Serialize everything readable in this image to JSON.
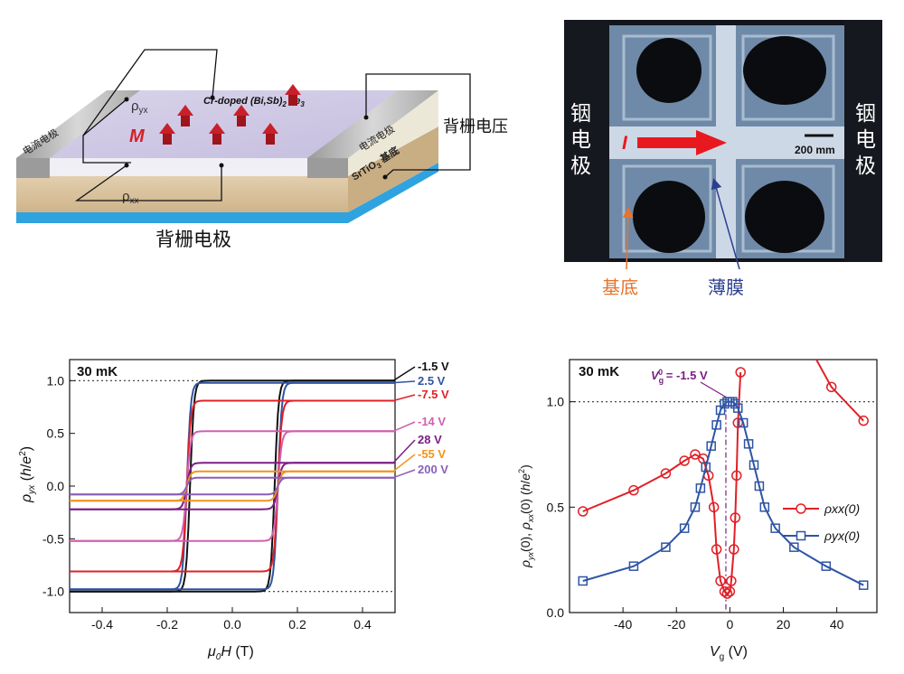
{
  "device": {
    "top_label": "Cr-doped (Bi,Sb)",
    "top_label_sub": "2",
    "top_label_tail": " Te",
    "top_label_sub2": "3",
    "rho_yx": "ρ",
    "rho_yx_sub": "yx",
    "rho_xx": "ρ",
    "rho_xx_sub": "xx",
    "magnetization": "M",
    "current_electrode_left": "电流电极",
    "current_electrode_right": "电流电极",
    "substrate": "SrTiO",
    "substrate_sub": "3",
    "substrate_tail": " 基底",
    "back_gate_voltage": "背栅电压",
    "back_gate_electrode": "背栅电极"
  },
  "micrograph": {
    "left_electrode": [
      "铟",
      "电",
      "极"
    ],
    "right_electrode": [
      "铟",
      "电",
      "极"
    ],
    "current_label": "I",
    "scale_bar": "200 mm",
    "substrate_label": "基底",
    "film_label": "薄膜",
    "colors": {
      "substrate": "#e8732b",
      "film": "#2b3f8f",
      "current": "#e8191e"
    }
  },
  "chart_data": [
    {
      "type": "line",
      "title": "30 mK",
      "xlabel": "μ0H (T)",
      "ylabel": "ρyx (h/e²)",
      "xlim": [
        -0.5,
        0.5
      ],
      "ylim": [
        -1.2,
        1.2
      ],
      "xticks": [
        "-0.4",
        "-0.2",
        "0.0",
        "0.2",
        "0.4"
      ],
      "yticks": [
        "-1.0",
        "-0.5",
        "0.0",
        "0.5",
        "1.0"
      ],
      "reference_lines": [
        1.0,
        -1.0
      ],
      "legend_placement": "right-outside",
      "series": [
        {
          "name": "-1.5 V",
          "color": "#111111",
          "saturation": 1.0,
          "coercive_field": 0.13
        },
        {
          "name": "2.5 V",
          "color": "#2e54a4",
          "saturation": 0.98,
          "coercive_field": 0.14
        },
        {
          "name": "-7.5 V",
          "color": "#e02027",
          "saturation": 0.81,
          "coercive_field": 0.14
        },
        {
          "name": "-14 V",
          "color": "#d060b0",
          "saturation": 0.52,
          "coercive_field": 0.14
        },
        {
          "name": "28 V",
          "color": "#7b1f84",
          "saturation": 0.22,
          "coercive_field": 0.14
        },
        {
          "name": "-55 V",
          "color": "#f2941c",
          "saturation": 0.14,
          "coercive_field": 0.14
        },
        {
          "name": "200 V",
          "color": "#8b5fb8",
          "saturation": 0.08,
          "coercive_field": 0.14
        }
      ]
    },
    {
      "type": "scatter",
      "title": "30 mK",
      "annotation": "V",
      "annotation_sub": "g",
      "annotation_sup": "0",
      "annotation_value": " = -1.5 V",
      "xlabel": "Vg (V)",
      "ylabel": "ρyx(0), ρxx(0) (h/e²)",
      "xlim": [
        -60,
        55
      ],
      "ylim": [
        0,
        1.2
      ],
      "xticks": [
        "-40",
        "-20",
        "0",
        "20",
        "40"
      ],
      "yticks": [
        "0.0",
        "0.5",
        "1.0"
      ],
      "reference_lines": [
        1.0
      ],
      "legend_placement": "right",
      "series": [
        {
          "name": "ρxx(0)",
          "marker": "circle",
          "color": "#e02027",
          "points": [
            [
              -55,
              0.48
            ],
            [
              -36,
              0.58
            ],
            [
              -24,
              0.66
            ],
            [
              -17,
              0.72
            ],
            [
              -13,
              0.75
            ],
            [
              -10,
              0.73
            ],
            [
              -8,
              0.65
            ],
            [
              -6,
              0.5
            ],
            [
              -5,
              0.3
            ],
            [
              -3.5,
              0.15
            ],
            [
              -2,
              0.1
            ],
            [
              -1,
              0.09
            ],
            [
              0,
              0.1
            ],
            [
              0.5,
              0.15
            ],
            [
              1.5,
              0.3
            ],
            [
              2,
              0.45
            ],
            [
              2.5,
              0.65
            ],
            [
              3,
              0.9
            ],
            [
              4,
              1.14
            ]
          ],
          "right_branch": [
            [
              28,
              1.3
            ],
            [
              38,
              1.07
            ],
            [
              50,
              0.91
            ]
          ]
        },
        {
          "name": "ρyx(0)",
          "marker": "square",
          "color": "#2e54a4",
          "points": [
            [
              -55,
              0.15
            ],
            [
              -36,
              0.22
            ],
            [
              -24,
              0.31
            ],
            [
              -17,
              0.4
            ],
            [
              -13,
              0.5
            ],
            [
              -11,
              0.59
            ],
            [
              -9,
              0.69
            ],
            [
              -7,
              0.79
            ],
            [
              -5,
              0.89
            ],
            [
              -3.5,
              0.96
            ],
            [
              -2,
              0.99
            ],
            [
              -1,
              1.0
            ],
            [
              0,
              1.0
            ],
            [
              1,
              1.0
            ],
            [
              2,
              0.99
            ],
            [
              3,
              0.97
            ],
            [
              5,
              0.9
            ],
            [
              7,
              0.8
            ],
            [
              9,
              0.7
            ],
            [
              11,
              0.6
            ],
            [
              13,
              0.5
            ],
            [
              17,
              0.4
            ],
            [
              24,
              0.31
            ],
            [
              36,
              0.22
            ],
            [
              50,
              0.13
            ]
          ]
        }
      ]
    }
  ]
}
